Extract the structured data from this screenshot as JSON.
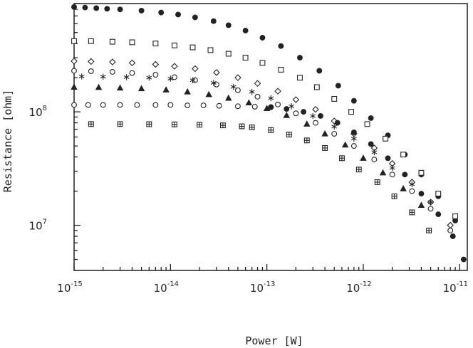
{
  "chart_data": {
    "type": "scatter",
    "title": "",
    "xlabel": "Power [W]",
    "ylabel": "Resistance [ohm]",
    "xscale": "log",
    "yscale": "log",
    "xlim": [
      1e-15,
      1.2e-11
    ],
    "ylim": [
      4000000.0,
      900000000.0
    ],
    "grid": false,
    "x_tick_labels": [
      {
        "base": "10",
        "exp": "-15",
        "value": 1e-15
      },
      {
        "base": "10",
        "exp": "-14",
        "value": 1e-14
      },
      {
        "base": "10",
        "exp": "-13",
        "value": 1e-13
      },
      {
        "base": "10",
        "exp": "-12",
        "value": 1e-12
      },
      {
        "base": "10",
        "exp": "-11",
        "value": 1e-11
      }
    ],
    "y_tick_labels": [
      {
        "base": "10",
        "exp": "7",
        "value": 10000000.0
      },
      {
        "base": "10",
        "exp": "8",
        "value": 100000000.0
      }
    ],
    "series": [
      {
        "marker": "filled-circle",
        "R0": 840000000.0,
        "x": [
          1e-15,
          1.3e-15,
          1.7e-15,
          2.2e-15,
          3e-15,
          5e-15,
          8e-15,
          1.2e-14,
          1.8e-14,
          2.8e-14,
          4e-14,
          6e-14,
          9e-14,
          1.4e-13,
          2.2e-13,
          3.5e-13,
          5.5e-13,
          8e-13,
          1.2e-12,
          1.8e-12,
          2.7e-12,
          4e-12,
          6e-12,
          9e-12,
          1.1e-11
        ],
        "y": [
          840000000.0,
          830000000.0,
          820000000.0,
          810000000.0,
          800000000.0,
          780000000.0,
          750000000.0,
          720000000.0,
          680000000.0,
          630000000.0,
          580000000.0,
          520000000.0,
          450000000.0,
          380000000.0,
          300000000.0,
          230000000.0,
          170000000.0,
          125000000.0,
          88000000.0,
          62000000.0,
          42000000.0,
          28000000.0,
          18000000.0,
          11000000.0,
          5000000.0
        ]
      },
      {
        "marker": "open-square",
        "R0": 420000000.0,
        "x": [
          1e-15,
          1.5e-15,
          2.5e-15,
          4e-15,
          7e-15,
          1.1e-14,
          1.7e-14,
          2.6e-14,
          4e-14,
          6e-14,
          9e-14,
          1.4e-13,
          2.2e-13,
          3.3e-13,
          5e-13,
          7.5e-13,
          1.1e-12,
          1.7e-12,
          2.6e-12,
          4e-12,
          6e-12,
          9e-12
        ],
        "y": [
          420000000.0,
          420000000.0,
          415000000.0,
          410000000.0,
          400000000.0,
          385000000.0,
          370000000.0,
          350000000.0,
          325000000.0,
          300000000.0,
          270000000.0,
          235000000.0,
          200000000.0,
          165000000.0,
          130000000.0,
          100000000.0,
          78000000.0,
          58000000.0,
          42000000.0,
          29000000.0,
          19000000.0,
          12000000.0
        ]
      },
      {
        "marker": "open-diamond",
        "R0": 280000000.0,
        "x": [
          1e-15,
          1.5e-15,
          2.5e-15,
          4e-15,
          7e-15,
          1.1e-14,
          1.8e-14,
          3e-14,
          5e-14,
          8e-14,
          1.3e-13,
          2e-13,
          3.2e-13,
          5e-13,
          8e-13,
          1.3e-12,
          2e-12,
          3.2e-12,
          5e-12,
          8e-12
        ],
        "y": [
          280000000.0,
          278000000.0,
          275000000.0,
          270000000.0,
          262000000.0,
          252000000.0,
          240000000.0,
          222000000.0,
          200000000.0,
          178000000.0,
          152000000.0,
          128000000.0,
          105000000.0,
          83000000.0,
          64000000.0,
          48000000.0,
          35000000.0,
          24000000.0,
          16000000.0,
          10000000.0
        ]
      },
      {
        "marker": "open-circle",
        "R0": 230000000.0,
        "x": [
          1e-15,
          1.5e-15,
          2.5e-15,
          4e-15,
          7e-15,
          1.1e-14,
          1.8e-14,
          3e-14,
          5e-14,
          8e-14,
          1.3e-13,
          2e-13,
          3.2e-13,
          5e-13,
          8e-13,
          1.3e-12,
          2e-12,
          3.2e-12,
          5e-12,
          8e-12
        ],
        "y": [
          230000000.0,
          228000000.0,
          225000000.0,
          220000000.0,
          212000000.0,
          202000000.0,
          190000000.0,
          174000000.0,
          155000000.0,
          136000000.0,
          116000000.0,
          97000000.0,
          80000000.0,
          64000000.0,
          50000000.0,
          38000000.0,
          28000000.0,
          20000000.0,
          14000000.0,
          9000000.0
        ]
      },
      {
        "marker": "asterisk",
        "R0": 205000000.0,
        "x": [
          1.2e-15,
          2e-15,
          3.5e-15,
          6e-15,
          1e-14,
          1.7e-14,
          2.8e-14,
          4.5e-14,
          7e-14,
          1.1e-13,
          1.8e-13,
          3e-13,
          5e-13,
          8e-13,
          1.3e-12,
          2e-12,
          3.2e-12,
          5e-12
        ],
        "y": [
          205000000.0,
          204000000.0,
          202000000.0,
          200000000.0,
          196000000.0,
          190000000.0,
          180000000.0,
          166000000.0,
          150000000.0,
          132000000.0,
          112000000.0,
          92000000.0,
          74000000.0,
          58000000.0,
          44000000.0,
          32000000.0,
          23000000.0,
          16000000.0
        ]
      },
      {
        "marker": "filled-triangle",
        "R0": 165000000.0,
        "x": [
          1e-15,
          1.8e-15,
          3e-15,
          5e-15,
          9e-15,
          1.5e-14,
          2.5e-14,
          4e-14,
          6.5e-14,
          1e-13,
          1.6e-13,
          2.6e-13,
          4e-13,
          6.5e-13,
          1e-12,
          1.6e-12,
          2.6e-12,
          4e-12
        ],
        "y": [
          165000000.0,
          164000000.0,
          162000000.0,
          160000000.0,
          156000000.0,
          150000000.0,
          142000000.0,
          132000000.0,
          120000000.0,
          107000000.0,
          93000000.0,
          78000000.0,
          64000000.0,
          51000000.0,
          39000000.0,
          29000000.0,
          21000000.0,
          15000000.0
        ]
      },
      {
        "marker": "open-circle",
        "R0": 115000000.0,
        "x": [
          1e-15,
          1.4e-15,
          2e-15,
          3e-15,
          4.5e-15,
          7e-15,
          1e-14,
          1.5e-14,
          2.2e-14,
          3.2e-14,
          5e-14,
          7.5e-14,
          1.1e-13
        ],
        "y": [
          115000000.0,
          115000000.0,
          115000000.0,
          115000000.0,
          115000000.0,
          115000000.0,
          115000000.0,
          114000000.0,
          114000000.0,
          113000000.0,
          112000000.0,
          111000000.0,
          110000000.0
        ]
      },
      {
        "marker": "filled-circle",
        "R0": 112000000.0,
        "x": [
          1.1e-13,
          1.6e-13,
          2.4e-13,
          3.6e-13,
          5.4e-13,
          8e-13,
          1.2e-12,
          1.8e-12,
          2.7e-12,
          4e-12,
          6e-12,
          8.5e-12
        ],
        "y": [
          110000000.0,
          106000000.0,
          100000000.0,
          92000000.0,
          80000000.0,
          66000000.0,
          52000000.0,
          39000000.0,
          28000000.0,
          19000000.0,
          12500000.0,
          8000000.0
        ]
      },
      {
        "marker": "hatched-square",
        "R0": 78000000.0,
        "x": [
          1.5e-15,
          3e-15,
          6e-15,
          1.1e-14,
          2e-14,
          3.5e-14,
          5.5e-14,
          7e-14,
          1.1e-13,
          1.7e-13,
          2.6e-13,
          4e-13,
          6e-13,
          9e-13,
          1.4e-12,
          2.1e-12,
          3.2e-12,
          4.8e-12
        ],
        "y": [
          78000000.0,
          78000000.0,
          77800000.0,
          77500000.0,
          77000000.0,
          76000000.0,
          74500000.0,
          73000000.0,
          69000000.0,
          63000000.0,
          56000000.0,
          48000000.0,
          39000000.0,
          31000000.0,
          24000000.0,
          18000000.0,
          13000000.0,
          9000000.0
        ]
      }
    ]
  }
}
